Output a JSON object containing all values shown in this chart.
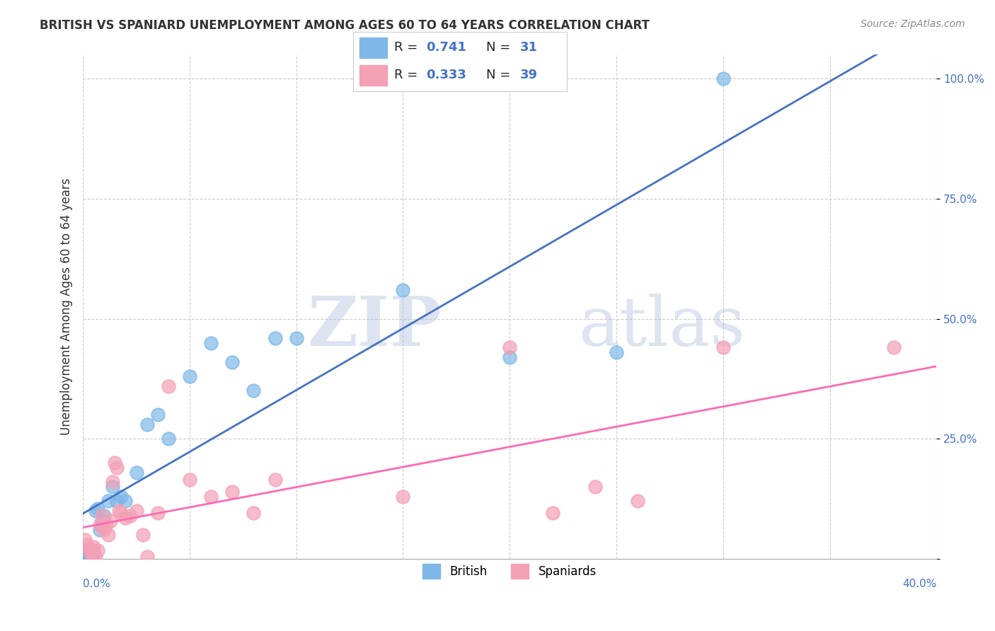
{
  "title": "BRITISH VS SPANIARD UNEMPLOYMENT AMONG AGES 60 TO 64 YEARS CORRELATION CHART",
  "source": "Source: ZipAtlas.com",
  "ylabel": "Unemployment Among Ages 60 to 64 years",
  "xlim": [
    0.0,
    0.4
  ],
  "ylim": [
    0.0,
    1.05
  ],
  "yticks": [
    0.0,
    0.25,
    0.5,
    0.75,
    1.0
  ],
  "ytick_labels": [
    "",
    "25.0%",
    "50.0%",
    "75.0%",
    "100.0%"
  ],
  "british_R": 0.741,
  "british_N": 31,
  "spaniard_R": 0.333,
  "spaniard_N": 39,
  "british_color": "#7EB8E8",
  "spaniard_color": "#F4A0B5",
  "british_line_color": "#4472C4",
  "spaniard_line_color": "#FF69B4",
  "background_color": "#FFFFFF",
  "grid_color": "#CCCCCC",
  "title_color": "#333333",
  "british_x": [
    0.001,
    0.002,
    0.003,
    0.003,
    0.004,
    0.005,
    0.005,
    0.006,
    0.007,
    0.008,
    0.009,
    0.01,
    0.012,
    0.014,
    0.016,
    0.018,
    0.02,
    0.025,
    0.03,
    0.035,
    0.04,
    0.05,
    0.06,
    0.07,
    0.08,
    0.09,
    0.1,
    0.15,
    0.2,
    0.25,
    0.3
  ],
  "british_y": [
    0.015,
    0.01,
    0.02,
    0.008,
    0.012,
    0.015,
    0.01,
    0.1,
    0.105,
    0.06,
    0.08,
    0.09,
    0.12,
    0.15,
    0.12,
    0.13,
    0.12,
    0.18,
    0.28,
    0.3,
    0.25,
    0.38,
    0.45,
    0.41,
    0.35,
    0.46,
    0.46,
    0.56,
    0.42,
    0.43,
    1.0
  ],
  "spaniard_x": [
    0.001,
    0.002,
    0.003,
    0.004,
    0.004,
    0.005,
    0.005,
    0.006,
    0.007,
    0.008,
    0.009,
    0.01,
    0.011,
    0.012,
    0.013,
    0.014,
    0.015,
    0.016,
    0.017,
    0.018,
    0.02,
    0.022,
    0.025,
    0.028,
    0.03,
    0.035,
    0.04,
    0.05,
    0.06,
    0.07,
    0.08,
    0.09,
    0.15,
    0.2,
    0.22,
    0.24,
    0.26,
    0.3,
    0.38
  ],
  "spaniard_y": [
    0.04,
    0.03,
    0.02,
    0.015,
    0.01,
    0.025,
    0.008,
    0.005,
    0.018,
    0.07,
    0.09,
    0.06,
    0.07,
    0.05,
    0.08,
    0.16,
    0.2,
    0.19,
    0.1,
    0.095,
    0.085,
    0.09,
    0.1,
    0.05,
    0.005,
    0.095,
    0.36,
    0.165,
    0.13,
    0.14,
    0.095,
    0.165,
    0.13,
    0.44,
    0.095,
    0.15,
    0.12,
    0.44,
    0.44
  ],
  "watermark_color": "#AABBDD",
  "xtick_vals": [
    0.0,
    0.05,
    0.1,
    0.15,
    0.2,
    0.25,
    0.3,
    0.35,
    0.4
  ]
}
